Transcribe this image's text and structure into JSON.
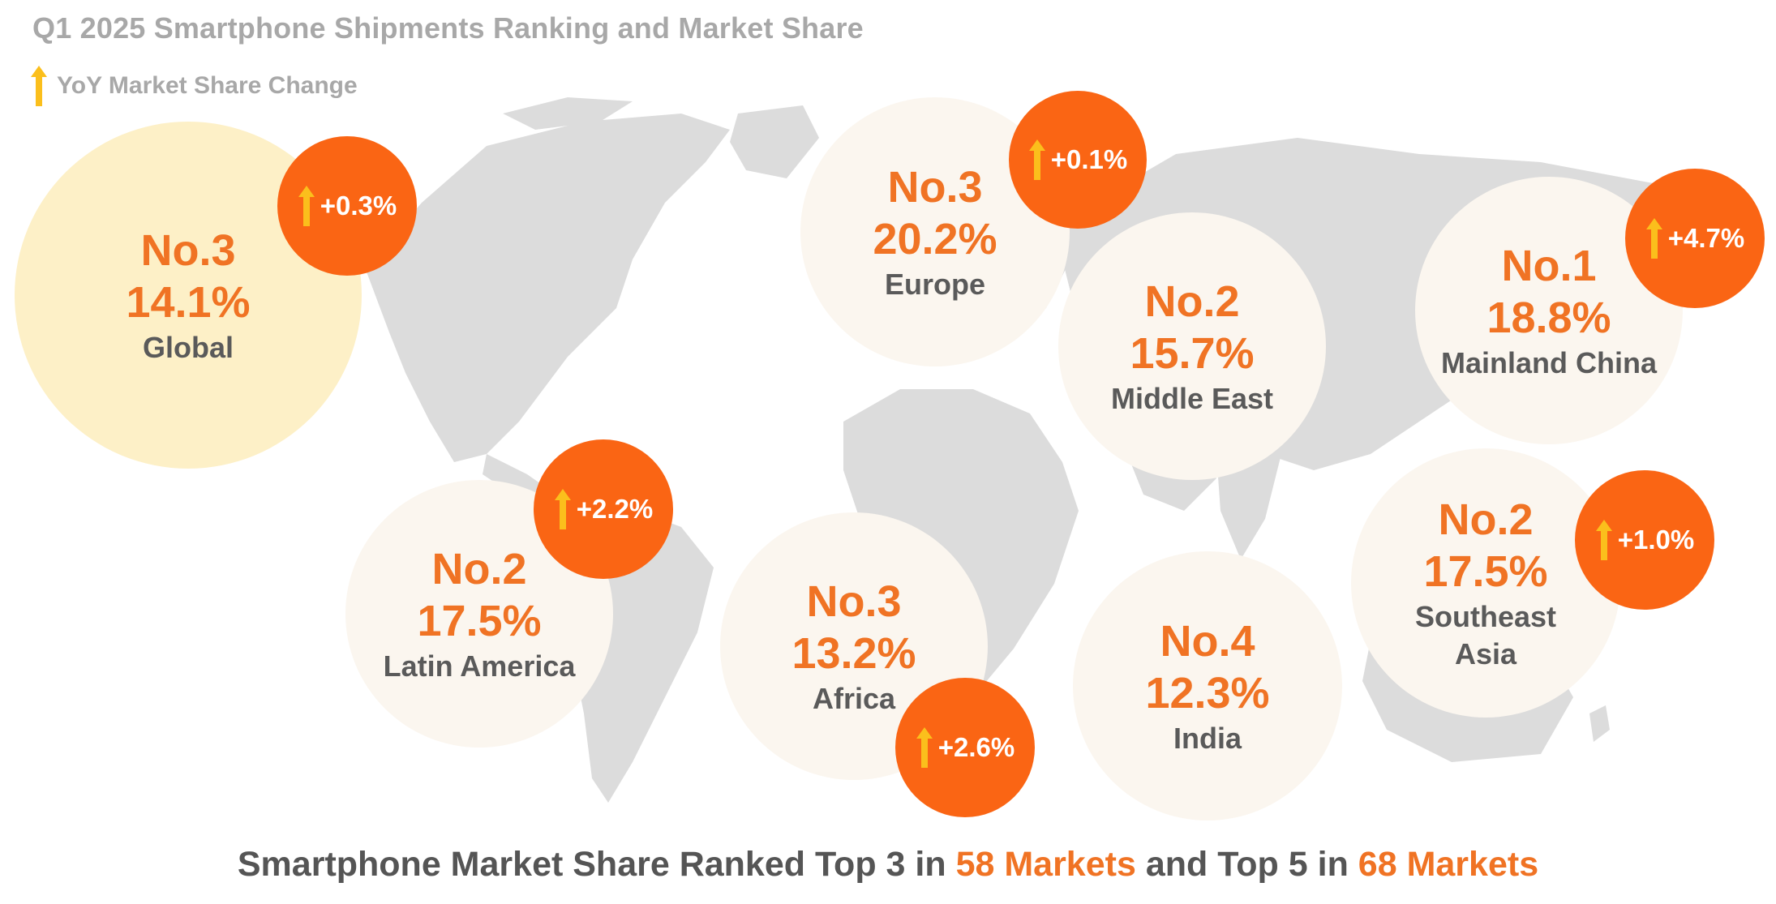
{
  "title": "Q1 2025 Smartphone Shipments Ranking and Market Share",
  "legend": {
    "label": "YoY Market Share Change",
    "icon": "up-arrow-icon"
  },
  "colors": {
    "accent_orange": "#f07324",
    "badge_orange": "#fa6514",
    "arrow_yellow": "#fbbf1c",
    "bubble_cream": "#fbf6ef",
    "global_bubble": "#fdf0c7",
    "map_gray": "#dcdcdc",
    "title_gray": "#a8a8a8",
    "text_dark": "#5a5a5a"
  },
  "regions": [
    {
      "id": "global",
      "rank": "No.3",
      "share": "14.1%",
      "name": "Global",
      "change": "+0.3%"
    },
    {
      "id": "europe",
      "rank": "No.3",
      "share": "20.2%",
      "name": "Europe",
      "change": "+0.1%"
    },
    {
      "id": "middle-east",
      "rank": "No.2",
      "share": "15.7%",
      "name": "Middle East",
      "change": null
    },
    {
      "id": "mainland-china",
      "rank": "No.1",
      "share": "18.8%",
      "name": "Mainland China",
      "change": "+4.7%"
    },
    {
      "id": "latin-america",
      "rank": "No.2",
      "share": "17.5%",
      "name": "Latin America",
      "change": "+2.2%"
    },
    {
      "id": "africa",
      "rank": "No.3",
      "share": "13.2%",
      "name": "Africa",
      "change": "+2.6%"
    },
    {
      "id": "india",
      "rank": "No.4",
      "share": "12.3%",
      "name": "India",
      "change": null
    },
    {
      "id": "southeast-asia",
      "rank": "No.2",
      "share": "17.5%",
      "name_line1": "Southeast",
      "name_line2": "Asia",
      "change": "+1.0%"
    }
  ],
  "footer": {
    "part1": "Smartphone Market Share Ranked Top 3 in ",
    "highlight1": "58 Markets",
    "part2": " and Top 5 in ",
    "highlight2": "68 Markets"
  }
}
